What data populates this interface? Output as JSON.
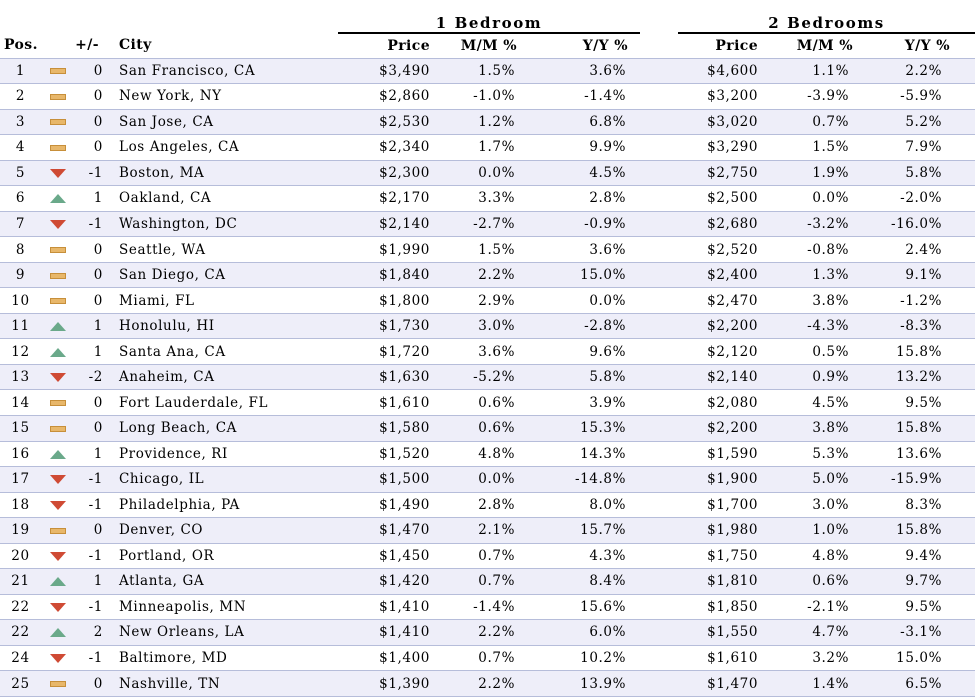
{
  "chart_data": {
    "type": "table",
    "group_headers": [
      "1 Bedroom",
      "2 Bedrooms"
    ],
    "columns": [
      "Pos.",
      "+/-",
      "City",
      "Price",
      "M/M %",
      "Y/Y %",
      "Price",
      "M/M %",
      "Y/Y %"
    ],
    "rows": [
      {
        "pos": "1",
        "change": "0",
        "trend": "flat",
        "city": "San Francisco, CA",
        "p1": "$3,490",
        "mm1": "1.5%",
        "yy1": "3.6%",
        "p2": "$4,600",
        "mm2": "1.1%",
        "yy2": "2.2%"
      },
      {
        "pos": "2",
        "change": "0",
        "trend": "flat",
        "city": "New York, NY",
        "p1": "$2,860",
        "mm1": "-1.0%",
        "yy1": "-1.4%",
        "p2": "$3,200",
        "mm2": "-3.9%",
        "yy2": "-5.9%"
      },
      {
        "pos": "3",
        "change": "0",
        "trend": "flat",
        "city": "San Jose, CA",
        "p1": "$2,530",
        "mm1": "1.2%",
        "yy1": "6.8%",
        "p2": "$3,020",
        "mm2": "0.7%",
        "yy2": "5.2%"
      },
      {
        "pos": "4",
        "change": "0",
        "trend": "flat",
        "city": "Los Angeles, CA",
        "p1": "$2,340",
        "mm1": "1.7%",
        "yy1": "9.9%",
        "p2": "$3,290",
        "mm2": "1.5%",
        "yy2": "7.9%"
      },
      {
        "pos": "5",
        "change": "-1",
        "trend": "down",
        "city": "Boston, MA",
        "p1": "$2,300",
        "mm1": "0.0%",
        "yy1": "4.5%",
        "p2": "$2,750",
        "mm2": "1.9%",
        "yy2": "5.8%"
      },
      {
        "pos": "6",
        "change": "1",
        "trend": "up",
        "city": "Oakland, CA",
        "p1": "$2,170",
        "mm1": "3.3%",
        "yy1": "2.8%",
        "p2": "$2,500",
        "mm2": "0.0%",
        "yy2": "-2.0%"
      },
      {
        "pos": "7",
        "change": "-1",
        "trend": "down",
        "city": "Washington, DC",
        "p1": "$2,140",
        "mm1": "-2.7%",
        "yy1": "-0.9%",
        "p2": "$2,680",
        "mm2": "-3.2%",
        "yy2": "-16.0%"
      },
      {
        "pos": "8",
        "change": "0",
        "trend": "flat",
        "city": "Seattle, WA",
        "p1": "$1,990",
        "mm1": "1.5%",
        "yy1": "3.6%",
        "p2": "$2,520",
        "mm2": "-0.8%",
        "yy2": "2.4%"
      },
      {
        "pos": "9",
        "change": "0",
        "trend": "flat",
        "city": "San Diego, CA",
        "p1": "$1,840",
        "mm1": "2.2%",
        "yy1": "15.0%",
        "p2": "$2,400",
        "mm2": "1.3%",
        "yy2": "9.1%"
      },
      {
        "pos": "10",
        "change": "0",
        "trend": "flat",
        "city": "Miami, FL",
        "p1": "$1,800",
        "mm1": "2.9%",
        "yy1": "0.0%",
        "p2": "$2,470",
        "mm2": "3.8%",
        "yy2": "-1.2%"
      },
      {
        "pos": "11",
        "change": "1",
        "trend": "up",
        "city": "Honolulu, HI",
        "p1": "$1,730",
        "mm1": "3.0%",
        "yy1": "-2.8%",
        "p2": "$2,200",
        "mm2": "-4.3%",
        "yy2": "-8.3%"
      },
      {
        "pos": "12",
        "change": "1",
        "trend": "up",
        "city": "Santa Ana, CA",
        "p1": "$1,720",
        "mm1": "3.6%",
        "yy1": "9.6%",
        "p2": "$2,120",
        "mm2": "0.5%",
        "yy2": "15.8%"
      },
      {
        "pos": "13",
        "change": "-2",
        "trend": "down",
        "city": "Anaheim, CA",
        "p1": "$1,630",
        "mm1": "-5.2%",
        "yy1": "5.8%",
        "p2": "$2,140",
        "mm2": "0.9%",
        "yy2": "13.2%"
      },
      {
        "pos": "14",
        "change": "0",
        "trend": "flat",
        "city": "Fort Lauderdale, FL",
        "p1": "$1,610",
        "mm1": "0.6%",
        "yy1": "3.9%",
        "p2": "$2,080",
        "mm2": "4.5%",
        "yy2": "9.5%"
      },
      {
        "pos": "15",
        "change": "0",
        "trend": "flat",
        "city": "Long Beach, CA",
        "p1": "$1,580",
        "mm1": "0.6%",
        "yy1": "15.3%",
        "p2": "$2,200",
        "mm2": "3.8%",
        "yy2": "15.8%"
      },
      {
        "pos": "16",
        "change": "1",
        "trend": "up",
        "city": "Providence, RI",
        "p1": "$1,520",
        "mm1": "4.8%",
        "yy1": "14.3%",
        "p2": "$1,590",
        "mm2": "5.3%",
        "yy2": "13.6%"
      },
      {
        "pos": "17",
        "change": "-1",
        "trend": "down",
        "city": "Chicago, IL",
        "p1": "$1,500",
        "mm1": "0.0%",
        "yy1": "-14.8%",
        "p2": "$1,900",
        "mm2": "5.0%",
        "yy2": "-15.9%"
      },
      {
        "pos": "18",
        "change": "-1",
        "trend": "down",
        "city": "Philadelphia, PA",
        "p1": "$1,490",
        "mm1": "2.8%",
        "yy1": "8.0%",
        "p2": "$1,700",
        "mm2": "3.0%",
        "yy2": "8.3%"
      },
      {
        "pos": "19",
        "change": "0",
        "trend": "flat",
        "city": "Denver, CO",
        "p1": "$1,470",
        "mm1": "2.1%",
        "yy1": "15.7%",
        "p2": "$1,980",
        "mm2": "1.0%",
        "yy2": "15.8%"
      },
      {
        "pos": "20",
        "change": "-1",
        "trend": "down",
        "city": "Portland, OR",
        "p1": "$1,450",
        "mm1": "0.7%",
        "yy1": "4.3%",
        "p2": "$1,750",
        "mm2": "4.8%",
        "yy2": "9.4%"
      },
      {
        "pos": "21",
        "change": "1",
        "trend": "up",
        "city": "Atlanta, GA",
        "p1": "$1,420",
        "mm1": "0.7%",
        "yy1": "8.4%",
        "p2": "$1,810",
        "mm2": "0.6%",
        "yy2": "9.7%"
      },
      {
        "pos": "22",
        "change": "-1",
        "trend": "down",
        "city": "Minneapolis, MN",
        "p1": "$1,410",
        "mm1": "-1.4%",
        "yy1": "15.6%",
        "p2": "$1,850",
        "mm2": "-2.1%",
        "yy2": "9.5%"
      },
      {
        "pos": "22",
        "change": "2",
        "trend": "up",
        "city": "New Orleans, LA",
        "p1": "$1,410",
        "mm1": "2.2%",
        "yy1": "6.0%",
        "p2": "$1,550",
        "mm2": "4.7%",
        "yy2": "-3.1%"
      },
      {
        "pos": "24",
        "change": "-1",
        "trend": "down",
        "city": "Baltimore, MD",
        "p1": "$1,400",
        "mm1": "0.7%",
        "yy1": "10.2%",
        "p2": "$1,610",
        "mm2": "3.2%",
        "yy2": "15.0%"
      },
      {
        "pos": "25",
        "change": "0",
        "trend": "flat",
        "city": "Nashville, TN",
        "p1": "$1,390",
        "mm1": "2.2%",
        "yy1": "13.9%",
        "p2": "$1,470",
        "mm2": "1.4%",
        "yy2": "6.5%"
      }
    ]
  },
  "colors": {
    "row_stripe": "#eeeef9",
    "row_divider": "#b6bdda",
    "trend_up": "#6aa98a",
    "trend_down": "#cf4a34",
    "trend_flat": "#e8b76a"
  },
  "icons": {
    "up": "triangle-up-icon",
    "down": "triangle-down-icon",
    "flat": "dash-icon"
  }
}
